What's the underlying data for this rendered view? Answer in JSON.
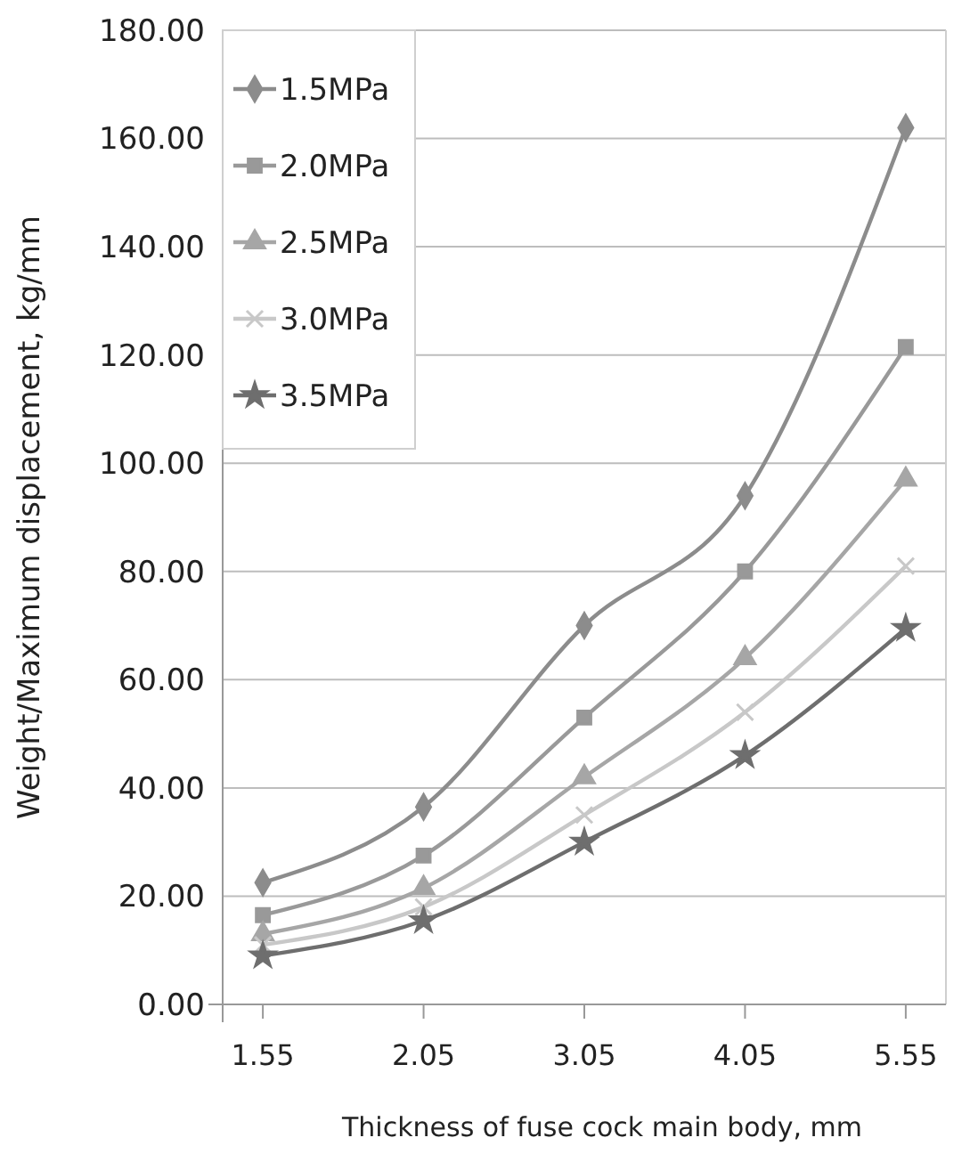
{
  "chart_data": {
    "type": "line",
    "xlabel": "Thickness of fuse cock main body, mm",
    "ylabel": "Weight/Maximum displacement, kg/mm",
    "categories": [
      "1.55",
      "2.05",
      "3.05",
      "4.05",
      "5.55"
    ],
    "series": [
      {
        "name": "1.5MPa",
        "color": "#8c8c8c",
        "marker": "diamond",
        "values": [
          22.5,
          36.5,
          70,
          94,
          162
        ]
      },
      {
        "name": "2.0MPa",
        "color": "#999999",
        "marker": "square",
        "values": [
          16.5,
          27.5,
          53,
          80,
          121.5
        ]
      },
      {
        "name": "2.5MPa",
        "color": "#a6a6a6",
        "marker": "triangle",
        "values": [
          13,
          21.5,
          42,
          64,
          97
        ]
      },
      {
        "name": "3.0MPa",
        "color": "#c8c8c8",
        "marker": "cross",
        "values": [
          11,
          18,
          35,
          54,
          81
        ]
      },
      {
        "name": "3.5MPa",
        "color": "#6e6e6e",
        "marker": "star",
        "values": [
          9,
          15.5,
          30,
          46,
          69.5
        ]
      }
    ],
    "ylim": [
      0,
      180
    ],
    "yticks": [
      {
        "value": 0,
        "label": "0.00"
      },
      {
        "value": 20,
        "label": "20.00"
      },
      {
        "value": 40,
        "label": "40.00"
      },
      {
        "value": 60,
        "label": "60.00"
      },
      {
        "value": 80,
        "label": "80.00"
      },
      {
        "value": 100,
        "label": "100.00"
      },
      {
        "value": 120,
        "label": "120.00"
      },
      {
        "value": 140,
        "label": "140.00"
      },
      {
        "value": 160,
        "label": "160.00"
      },
      {
        "value": 180,
        "label": "180.00"
      }
    ],
    "grid": "y",
    "legend": "top left",
    "line_style": "solid"
  }
}
